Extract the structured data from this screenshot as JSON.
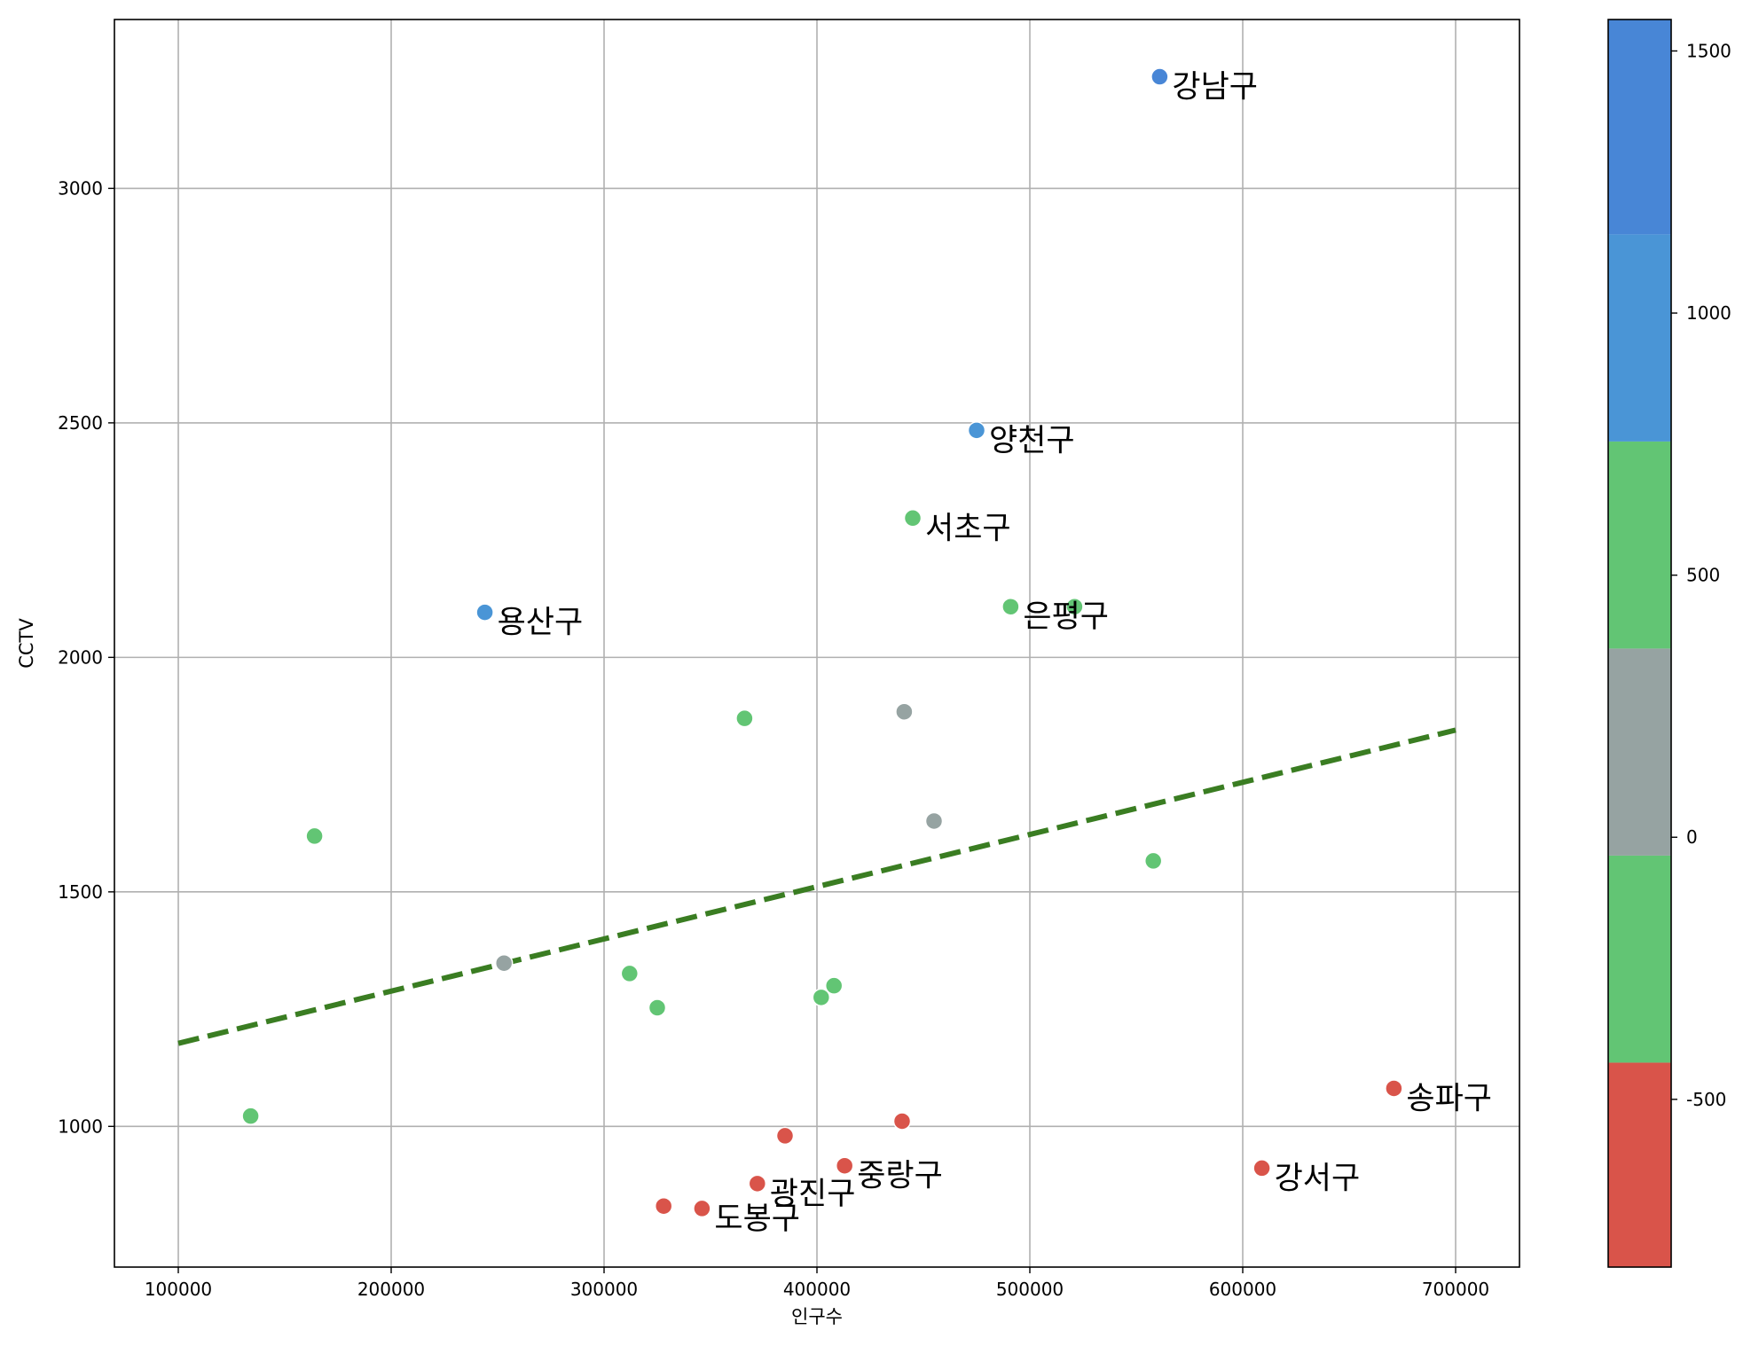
{
  "chart_data": {
    "type": "scatter",
    "xlabel": "인구수",
    "ylabel": "CCTV",
    "xlim": [
      70000,
      730000
    ],
    "ylim": [
      700,
      3360
    ],
    "xticks": [
      100000,
      200000,
      300000,
      400000,
      500000,
      600000,
      700000
    ],
    "yticks": [
      1000,
      1500,
      2000,
      2500,
      3000
    ],
    "grid": true,
    "colors": {
      "red": "#d9544a",
      "green": "#62c574",
      "gray": "#96a3a2",
      "blue_light": "#4a95d6",
      "blue": "#4886d6",
      "trend": "#3a7d22"
    },
    "points": [
      {
        "x": 561000,
        "y": 3238,
        "label": "강남구",
        "color": "blue"
      },
      {
        "x": 475000,
        "y": 2484,
        "label": "양천구",
        "color": "blue_light"
      },
      {
        "x": 445000,
        "y": 2297,
        "label": "서초구",
        "color": "green"
      },
      {
        "x": 491000,
        "y": 2108,
        "label": "은평구",
        "color": "green"
      },
      {
        "x": 244000,
        "y": 2096,
        "label": "용산구",
        "color": "blue_light"
      },
      {
        "x": 671000,
        "y": 1081,
        "label": "송파구",
        "color": "red"
      },
      {
        "x": 609000,
        "y": 911,
        "label": "강서구",
        "color": "red"
      },
      {
        "x": 413000,
        "y": 916,
        "label": "중랑구",
        "color": "red"
      },
      {
        "x": 372000,
        "y": 878,
        "label": "광진구",
        "color": "red"
      },
      {
        "x": 346000,
        "y": 825,
        "label": "도봉구",
        "color": "red"
      },
      {
        "x": 521000,
        "y": 2108,
        "color": "green"
      },
      {
        "x": 366000,
        "y": 1870,
        "color": "green"
      },
      {
        "x": 441000,
        "y": 1884,
        "color": "gray"
      },
      {
        "x": 455000,
        "y": 1651,
        "color": "gray"
      },
      {
        "x": 164000,
        "y": 1619,
        "color": "green"
      },
      {
        "x": 558000,
        "y": 1566,
        "color": "green"
      },
      {
        "x": 253000,
        "y": 1348,
        "color": "gray"
      },
      {
        "x": 312000,
        "y": 1326,
        "color": "green"
      },
      {
        "x": 408000,
        "y": 1300,
        "color": "green"
      },
      {
        "x": 402000,
        "y": 1275,
        "color": "green"
      },
      {
        "x": 325000,
        "y": 1253,
        "color": "green"
      },
      {
        "x": 134000,
        "y": 1022,
        "color": "green"
      },
      {
        "x": 440000,
        "y": 1011,
        "color": "red"
      },
      {
        "x": 385000,
        "y": 980,
        "color": "red"
      },
      {
        "x": 328000,
        "y": 830,
        "color": "red"
      }
    ],
    "trend_line": {
      "x": [
        100000,
        700000
      ],
      "y": [
        1177,
        1845
      ]
    },
    "colorbar": {
      "ticks": [
        1500,
        1000,
        500,
        0,
        -500
      ],
      "range": [
        -820,
        1560
      ],
      "bands": [
        {
          "from": -820,
          "to": -430,
          "color": "red"
        },
        {
          "from": -430,
          "to": -35,
          "color": "green"
        },
        {
          "from": -35,
          "to": 360,
          "color": "gray"
        },
        {
          "from": 360,
          "to": 755,
          "color": "green"
        },
        {
          "from": 755,
          "to": 1150,
          "color": "blue_light"
        },
        {
          "from": 1150,
          "to": 1560,
          "color": "blue"
        }
      ]
    }
  }
}
